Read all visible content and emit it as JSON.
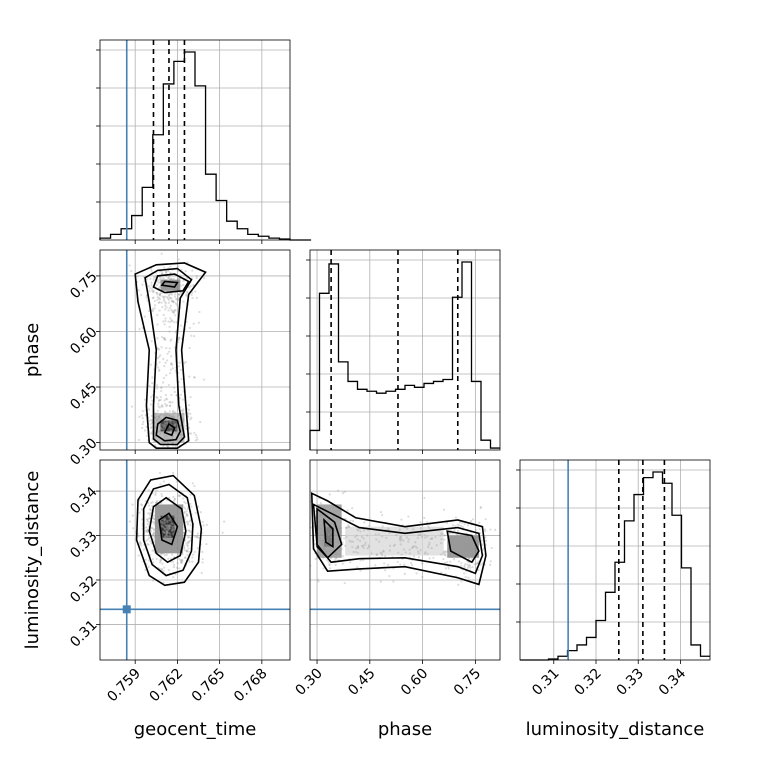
{
  "chart_data": {
    "type": "corner",
    "parameters": [
      "geocent_time",
      "phase",
      "luminosity_distance"
    ],
    "ranges": {
      "geocent_time": [
        0.7565,
        0.77
      ],
      "phase": [
        0.28,
        0.82
      ],
      "luminosity_distance": [
        0.302,
        0.347
      ]
    },
    "ticks": {
      "geocent_time": [
        0.759,
        0.762,
        0.765,
        0.768
      ],
      "phase": [
        0.3,
        0.45,
        0.6,
        0.75
      ],
      "luminosity_distance": [
        0.31,
        0.32,
        0.33,
        0.34
      ]
    },
    "tick_labels": {
      "geocent_time": [
        "0.759",
        "0.762",
        "0.765",
        "0.768"
      ],
      "phase": [
        "0.30",
        "0.45",
        "0.60",
        "0.75"
      ],
      "luminosity_distance": [
        "0.31",
        "0.32",
        "0.33",
        "0.34"
      ]
    },
    "truths": {
      "geocent_time": 0.7584,
      "phase": null,
      "luminosity_distance": 0.3134
    },
    "quantiles": {
      "geocent_time": [
        0.7603,
        0.7614,
        0.7625
      ],
      "phase": [
        0.34,
        0.53,
        0.7
      ],
      "luminosity_distance": [
        0.3254,
        0.3311,
        0.3362
      ]
    },
    "histograms": {
      "geocent_time": {
        "edges_start": 0.7565,
        "bin_width": 0.00075,
        "counts": [
          0.01,
          0.03,
          0.06,
          0.13,
          0.28,
          0.56,
          0.83,
          0.95,
          1.0,
          0.82,
          0.35,
          0.21,
          0.1,
          0.06,
          0.03,
          0.02,
          0.01,
          0.005,
          0.0,
          0.0
        ]
      },
      "phase": {
        "edges_start": 0.28,
        "bin_width": 0.027,
        "counts": [
          0.1,
          0.8,
          0.95,
          0.45,
          0.35,
          0.31,
          0.3,
          0.29,
          0.3,
          0.31,
          0.33,
          0.32,
          0.34,
          0.35,
          0.36,
          0.78,
          0.96,
          0.35,
          0.05,
          0.01
        ]
      },
      "luminosity_distance": {
        "edges_start": 0.302,
        "bin_width": 0.00225,
        "counts": [
          0.0,
          0.0,
          0.0,
          0.005,
          0.02,
          0.05,
          0.08,
          0.12,
          0.21,
          0.36,
          0.52,
          0.74,
          0.88,
          0.97,
          1.0,
          0.94,
          0.77,
          0.49,
          0.08,
          0.02
        ]
      }
    },
    "pair_contours": [
      {
        "x_param": "geocent_time",
        "y_param": "phase",
        "levels": [
          [
            [
              0.76,
              0.3
            ],
            [
              0.7605,
              0.285
            ],
            [
              0.762,
              0.285
            ],
            [
              0.7628,
              0.305
            ],
            [
              0.7626,
              0.4
            ],
            [
              0.7623,
              0.55
            ],
            [
              0.7628,
              0.7
            ],
            [
              0.764,
              0.76
            ],
            [
              0.7625,
              0.785
            ],
            [
              0.7605,
              0.78
            ],
            [
              0.759,
              0.755
            ],
            [
              0.7592,
              0.68
            ],
            [
              0.76,
              0.55
            ],
            [
              0.7598,
              0.4
            ]
          ],
          [
            [
              0.7603,
              0.31
            ],
            [
              0.7608,
              0.295
            ],
            [
              0.762,
              0.295
            ],
            [
              0.7625,
              0.315
            ],
            [
              0.7621,
              0.4
            ],
            [
              0.7619,
              0.55
            ],
            [
              0.7622,
              0.69
            ],
            [
              0.763,
              0.74
            ],
            [
              0.762,
              0.77
            ],
            [
              0.7606,
              0.765
            ],
            [
              0.7597,
              0.745
            ],
            [
              0.76,
              0.68
            ],
            [
              0.7605,
              0.55
            ],
            [
              0.7603,
              0.4
            ]
          ],
          [
            [
              0.7605,
              0.32
            ],
            [
              0.7611,
              0.305
            ],
            [
              0.7619,
              0.308
            ],
            [
              0.7622,
              0.33
            ],
            [
              0.762,
              0.36
            ],
            [
              0.7612,
              0.368
            ],
            [
              0.7606,
              0.35
            ]
          ],
          [
            [
              0.7611,
              0.327
            ],
            [
              0.7616,
              0.32
            ],
            [
              0.7618,
              0.34
            ],
            [
              0.7614,
              0.35
            ]
          ],
          [
            [
              0.7603,
              0.72
            ],
            [
              0.7611,
              0.705
            ],
            [
              0.7624,
              0.71
            ],
            [
              0.7628,
              0.735
            ],
            [
              0.7618,
              0.755
            ],
            [
              0.7606,
              0.75
            ]
          ],
          [
            [
              0.7609,
              0.725
            ],
            [
              0.7618,
              0.72
            ],
            [
              0.762,
              0.732
            ],
            [
              0.7611,
              0.735
            ]
          ]
        ]
      },
      {
        "x_param": "geocent_time",
        "y_param": "luminosity_distance",
        "levels": [
          [
            [
              0.76,
              0.321
            ],
            [
              0.7611,
              0.3188
            ],
            [
              0.7625,
              0.3195
            ],
            [
              0.7635,
              0.324
            ],
            [
              0.7637,
              0.3315
            ],
            [
              0.7632,
              0.339
            ],
            [
              0.7617,
              0.3435
            ],
            [
              0.7601,
              0.3425
            ],
            [
              0.7592,
              0.338
            ],
            [
              0.7591,
              0.329
            ]
          ],
          [
            [
              0.7602,
              0.3235
            ],
            [
              0.7612,
              0.321
            ],
            [
              0.7624,
              0.3222
            ],
            [
              0.763,
              0.3265
            ],
            [
              0.7631,
              0.3325
            ],
            [
              0.7627,
              0.3385
            ],
            [
              0.7614,
              0.3415
            ],
            [
              0.7603,
              0.3405
            ],
            [
              0.7596,
              0.336
            ],
            [
              0.7596,
              0.329
            ]
          ],
          [
            [
              0.7605,
              0.326
            ],
            [
              0.7613,
              0.324
            ],
            [
              0.7622,
              0.3255
            ],
            [
              0.7626,
              0.331
            ],
            [
              0.7623,
              0.336
            ],
            [
              0.7612,
              0.3385
            ],
            [
              0.7603,
              0.3365
            ],
            [
              0.76,
              0.331
            ]
          ],
          [
            [
              0.7609,
              0.329
            ],
            [
              0.7616,
              0.328
            ],
            [
              0.762,
              0.332
            ],
            [
              0.7614,
              0.335
            ],
            [
              0.7607,
              0.3335
            ]
          ]
        ]
      },
      {
        "x_param": "phase",
        "y_param": "luminosity_distance",
        "levels": [
          [
            [
              0.285,
              0.3395
            ],
            [
              0.33,
              0.3378
            ],
            [
              0.41,
              0.334
            ],
            [
              0.55,
              0.332
            ],
            [
              0.7,
              0.3335
            ],
            [
              0.77,
              0.332
            ],
            [
              0.78,
              0.3255
            ],
            [
              0.76,
              0.319
            ],
            [
              0.7,
              0.3205
            ],
            [
              0.55,
              0.323
            ],
            [
              0.42,
              0.3225
            ],
            [
              0.33,
              0.322
            ],
            [
              0.29,
              0.327
            ]
          ],
          [
            [
              0.29,
              0.337
            ],
            [
              0.34,
              0.335
            ],
            [
              0.42,
              0.3318
            ],
            [
              0.55,
              0.3305
            ],
            [
              0.7,
              0.3318
            ],
            [
              0.76,
              0.3305
            ],
            [
              0.77,
              0.3255
            ],
            [
              0.75,
              0.3215
            ],
            [
              0.7,
              0.323
            ],
            [
              0.55,
              0.325
            ],
            [
              0.42,
              0.3248
            ],
            [
              0.34,
              0.324
            ],
            [
              0.3,
              0.328
            ]
          ],
          [
            [
              0.3,
              0.336
            ],
            [
              0.35,
              0.333
            ],
            [
              0.37,
              0.328
            ],
            [
              0.33,
              0.325
            ],
            [
              0.3,
              0.3275
            ]
          ],
          [
            [
              0.67,
              0.331
            ],
            [
              0.74,
              0.33
            ],
            [
              0.76,
              0.3265
            ],
            [
              0.74,
              0.324
            ],
            [
              0.68,
              0.3265
            ]
          ],
          [
            [
              0.32,
              0.3335
            ],
            [
              0.345,
              0.3315
            ],
            [
              0.345,
              0.3275
            ],
            [
              0.325,
              0.3285
            ]
          ]
        ]
      }
    ],
    "grid": true,
    "legend": null
  }
}
